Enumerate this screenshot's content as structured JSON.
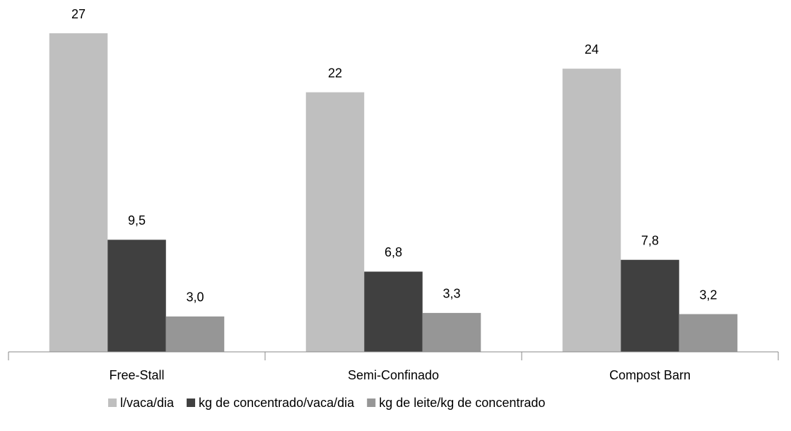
{
  "chart_data": {
    "type": "bar",
    "categories": [
      "Free-Stall",
      "Semi-Confinado",
      "Compost Barn"
    ],
    "series": [
      {
        "name": "l/vaca/dia",
        "color": "#bfbfbf",
        "values": [
          27,
          22,
          24
        ],
        "value_labels": [
          "27",
          "22",
          "24"
        ]
      },
      {
        "name": "kg de concentrado/vaca/dia",
        "color": "#404040",
        "values": [
          9.5,
          6.8,
          7.8
        ],
        "value_labels": [
          "9,5",
          "6,8",
          "7,8"
        ]
      },
      {
        "name": "kg de leite/kg de concentrado",
        "color": "#969696",
        "values": [
          3.0,
          3.3,
          3.2
        ],
        "value_labels": [
          "3,0",
          "3,3",
          "3,2"
        ]
      }
    ],
    "legend": "bottom"
  }
}
